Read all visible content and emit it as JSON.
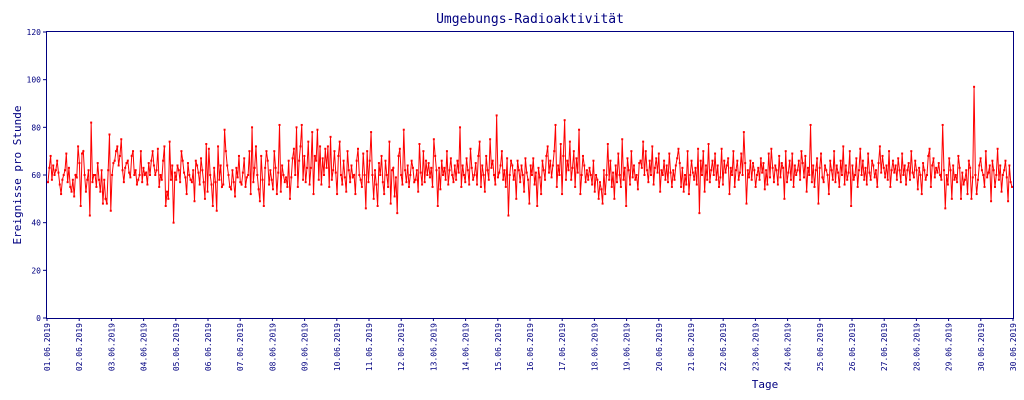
{
  "chart_data": {
    "type": "line",
    "title": "Umgebungs-Radioaktivität",
    "xlabel": "Tage",
    "ylabel": "Ereignisse pro Stunde",
    "ylim": [
      0,
      120
    ],
    "yticks": [
      0,
      20,
      40,
      60,
      80,
      100,
      120
    ],
    "grid": false,
    "colors": {
      "series": "#ff0000",
      "axis": "#000080",
      "text": "#000080"
    },
    "x_tick_labels": [
      "01.06.2019",
      "02.06.2019",
      "03.06.2019",
      "04.06.2019",
      "05.06.2019",
      "06.06.2019",
      "07.06.2019",
      "08.06.2019",
      "09.06.2019",
      "10.06.2019",
      "11.06.2019",
      "12.06.2019",
      "13.06.2019",
      "14.06.2019",
      "15.06.2019",
      "16.06.2019",
      "17.06.2019",
      "18.06.2019",
      "19.06.2019",
      "20.06.2019",
      "21.06.2019",
      "22.06.2019",
      "23.06.2019",
      "24.06.2019",
      "25.06.2019",
      "26.06.2019",
      "27.06.2019",
      "28.06.2019",
      "29.06.2019",
      "30.06.2019",
      "30.06.2019"
    ],
    "series": [
      {
        "values": [
          57,
          63,
          68,
          58,
          64,
          60,
          62,
          66,
          61,
          56,
          52,
          58,
          60,
          62,
          69,
          57,
          63,
          55,
          53,
          58,
          51,
          60,
          59,
          72,
          65,
          47,
          69,
          70,
          60,
          53,
          58,
          62,
          43,
          82,
          57,
          60,
          60,
          55,
          65,
          58,
          53,
          62,
          48,
          58,
          50,
          48,
          62,
          77,
          45,
          60,
          65,
          66,
          70,
          72,
          64,
          68,
          75,
          62,
          57,
          63,
          65,
          66,
          61,
          59,
          68,
          70,
          60,
          62,
          56,
          58,
          60,
          70,
          57,
          63,
          60,
          61,
          56,
          65,
          60,
          66,
          70,
          64,
          60,
          62,
          71,
          55,
          60,
          58,
          66,
          72,
          47,
          53,
          50,
          74,
          58,
          64,
          40,
          61,
          58,
          64,
          62,
          57,
          70,
          66,
          61,
          59,
          52,
          65,
          60,
          58,
          57,
          62,
          49,
          66,
          64,
          61,
          56,
          67,
          62,
          57,
          50,
          73,
          53,
          71,
          60,
          56,
          47,
          63,
          57,
          45,
          72,
          58,
          64,
          55,
          56,
          79,
          70,
          64,
          60,
          55,
          54,
          62,
          57,
          51,
          63,
          59,
          68,
          57,
          56,
          61,
          67,
          55,
          59,
          60,
          70,
          52,
          80,
          57,
          63,
          72,
          60,
          54,
          49,
          68,
          58,
          47,
          63,
          70,
          66,
          56,
          62,
          58,
          54,
          70,
          63,
          52,
          61,
          81,
          53,
          64,
          60,
          57,
          59,
          55,
          66,
          50,
          59,
          67,
          71,
          60,
          80,
          55,
          66,
          72,
          81,
          58,
          68,
          57,
          63,
          74,
          56,
          63,
          78,
          52,
          68,
          66,
          79,
          58,
          72,
          56,
          67,
          60,
          71,
          63,
          72,
          55,
          76,
          58,
          62,
          70,
          61,
          52,
          68,
          74,
          60,
          56,
          66,
          59,
          53,
          70,
          62,
          57,
          64,
          59,
          60,
          52,
          66,
          71,
          60,
          58,
          55,
          69,
          60,
          46,
          70,
          57,
          66,
          78,
          60,
          50,
          62,
          56,
          47,
          65,
          60,
          68,
          57,
          52,
          66,
          60,
          55,
          74,
          48,
          62,
          63,
          51,
          59,
          44,
          68,
          71,
          60,
          56,
          79,
          62,
          57,
          64,
          55,
          60,
          66,
          63,
          57,
          58,
          62,
          53,
          73,
          61,
          56,
          70,
          57,
          66,
          60,
          65,
          59,
          63,
          55,
          75,
          68,
          62,
          47,
          63,
          54,
          66,
          60,
          63,
          58,
          70,
          56,
          62,
          67,
          60,
          57,
          64,
          58,
          66,
          61,
          80,
          55,
          64,
          60,
          57,
          67,
          62,
          56,
          71,
          63,
          58,
          60,
          65,
          56,
          68,
          74,
          55,
          64,
          60,
          53,
          68,
          62,
          58,
          75,
          63,
          66,
          60,
          56,
          85,
          59,
          61,
          64,
          70,
          58,
          62,
          55,
          67,
          43,
          60,
          66,
          64,
          58,
          62,
          50,
          66,
          62,
          57,
          64,
          60,
          53,
          67,
          61,
          58,
          48,
          64,
          60,
          67,
          56,
          61,
          47,
          63,
          59,
          52,
          66,
          62,
          58,
          68,
          72,
          61,
          66,
          59,
          64,
          70,
          81,
          55,
          64,
          60,
          73,
          52,
          68,
          83,
          58,
          66,
          62,
          74,
          58,
          63,
          70,
          55,
          67,
          61,
          79,
          52,
          60,
          68,
          64,
          57,
          62,
          58,
          63,
          60,
          56,
          66,
          53,
          60,
          58,
          50,
          57,
          54,
          48,
          62,
          52,
          60,
          73,
          58,
          66,
          55,
          61,
          50,
          64,
          57,
          69,
          60,
          55,
          75,
          58,
          63,
          47,
          67,
          62,
          56,
          70,
          59,
          64,
          58,
          60,
          54,
          65,
          66,
          63,
          74,
          60,
          70,
          62,
          57,
          66,
          60,
          72,
          56,
          63,
          67,
          61,
          69,
          53,
          62,
          60,
          66,
          58,
          64,
          57,
          69,
          61,
          55,
          62,
          58,
          64,
          67,
          71,
          65,
          55,
          63,
          53,
          60,
          56,
          70,
          52,
          60,
          66,
          61,
          58,
          63,
          56,
          71,
          44,
          66,
          60,
          70,
          53,
          64,
          58,
          73,
          57,
          62,
          66,
          60,
          69,
          58,
          64,
          55,
          59,
          71,
          56,
          66,
          61,
          64,
          67,
          52,
          63,
          60,
          70,
          55,
          62,
          66,
          58,
          61,
          69,
          60,
          78,
          65,
          48,
          62,
          59,
          66,
          58,
          65,
          62,
          55,
          60,
          63,
          58,
          67,
          61,
          65,
          54,
          62,
          56,
          69,
          59,
          71,
          63,
          57,
          64,
          62,
          56,
          68,
          59,
          65,
          63,
          50,
          70,
          57,
          61,
          66,
          58,
          69,
          55,
          64,
          60,
          62,
          66,
          58,
          70,
          65,
          59,
          68,
          53,
          63,
          60,
          81,
          57,
          64,
          55,
          62,
          67,
          48,
          63,
          69,
          59,
          57,
          64,
          62,
          60,
          52,
          66,
          62,
          58,
          70,
          57,
          64,
          61,
          55,
          66,
          60,
          72,
          56,
          64,
          58,
          61,
          70,
          47,
          64,
          58,
          60,
          67,
          55,
          62,
          71,
          60,
          66,
          58,
          63,
          56,
          69,
          61,
          58,
          66,
          64,
          59,
          62,
          55,
          65,
          72,
          61,
          68,
          63,
          59,
          64,
          58,
          70,
          55,
          62,
          66,
          61,
          64,
          58,
          67,
          62,
          57,
          69,
          60,
          64,
          56,
          62,
          65,
          58,
          70,
          61,
          59,
          66,
          62,
          54,
          63,
          60,
          52,
          65,
          62,
          58,
          60,
          68,
          71,
          55,
          64,
          67,
          59,
          63,
          61,
          65,
          60,
          58,
          81,
          62,
          46,
          60,
          56,
          67,
          62,
          50,
          64,
          58,
          60,
          57,
          68,
          63,
          50,
          61,
          56,
          58,
          62,
          52,
          66,
          63,
          50,
          59,
          97,
          60,
          52,
          58,
          64,
          67,
          62,
          60,
          55,
          70,
          59,
          61,
          64,
          49,
          66,
          62,
          55,
          60,
          71,
          58,
          64,
          53,
          60,
          62,
          66,
          59,
          49,
          64,
          57,
          55
        ]
      }
    ]
  }
}
